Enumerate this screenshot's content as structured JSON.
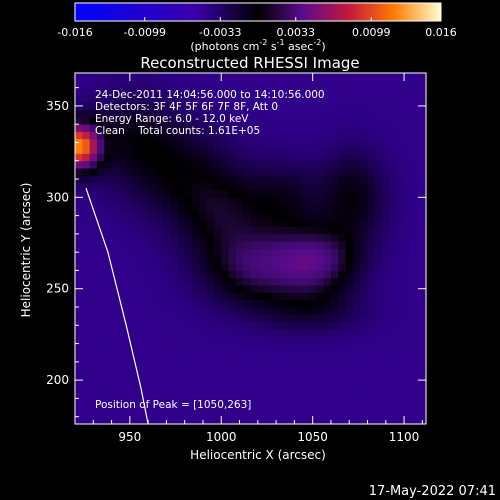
{
  "chart_data": {
    "type": "heatmap",
    "title": "Reconstructed RHESSI Image",
    "xlabel": "Heliocentric X (arcsec)",
    "ylabel": "Heliocentric Y (arcsec)",
    "xlim": [
      920,
      1112
    ],
    "ylim": [
      176,
      368
    ],
    "x_ticks": [
      950,
      1000,
      1050,
      1100
    ],
    "y_ticks": [
      200,
      250,
      300,
      350
    ],
    "colorbar": {
      "ticks": [
        "-0.016",
        "-0.0099",
        "-0.0033",
        "0.0033",
        "0.0099",
        "0.016"
      ],
      "range": [
        -0.016,
        0.016
      ],
      "units_text": "(photons cm",
      "units_exp1": "-2",
      "units_mid": " s",
      "units_exp2": "-1",
      "units_mid2": " asec",
      "units_exp3": "-2",
      "units_end": ")"
    },
    "info_lines": [
      "24-Dec-2011 14:04:56.000 to 14:10:56.000",
      "Detectors: 3F 4F 5F 6F 7F 8F, Att 0",
      "Energy Range: 6.0 - 12.0 keV",
      "Clean    Total counts: 1.61E+05"
    ],
    "peak_label": "Position of Peak = [1050,263]",
    "peak": [
      1050,
      263
    ],
    "components": [
      {
        "x": 922,
        "y": 328,
        "amp": 0.016,
        "sx": 8,
        "sy": 9
      },
      {
        "x": 1052,
        "y": 265,
        "amp": 0.0068,
        "sx": 16,
        "sy": 13
      },
      {
        "x": 1018,
        "y": 262,
        "amp": 0.006,
        "sx": 20,
        "sy": 15
      },
      {
        "x": 1000,
        "y": 292,
        "amp": 0.004,
        "sx": 18,
        "sy": 16
      },
      {
        "x": 1072,
        "y": 300,
        "amp": 0.004,
        "sx": 13,
        "sy": 18
      },
      {
        "x": 975,
        "y": 315,
        "amp": 0.0035,
        "sx": 22,
        "sy": 18
      },
      {
        "x": 950,
        "y": 335,
        "amp": 0.003,
        "sx": 18,
        "sy": 16
      },
      {
        "x": 1050,
        "y": 238,
        "amp": 0.0025,
        "sx": 20,
        "sy": 9
      },
      {
        "x": 1035,
        "y": 300,
        "amp": 0.003,
        "sx": 14,
        "sy": 14
      }
    ],
    "background": -0.0045,
    "limb_arc": [
      [
        926,
        305
      ],
      [
        938,
        270
      ],
      [
        948,
        230
      ],
      [
        956,
        196
      ],
      [
        960,
        176
      ]
    ]
  },
  "timestamp": "17-May-2022 07:41"
}
